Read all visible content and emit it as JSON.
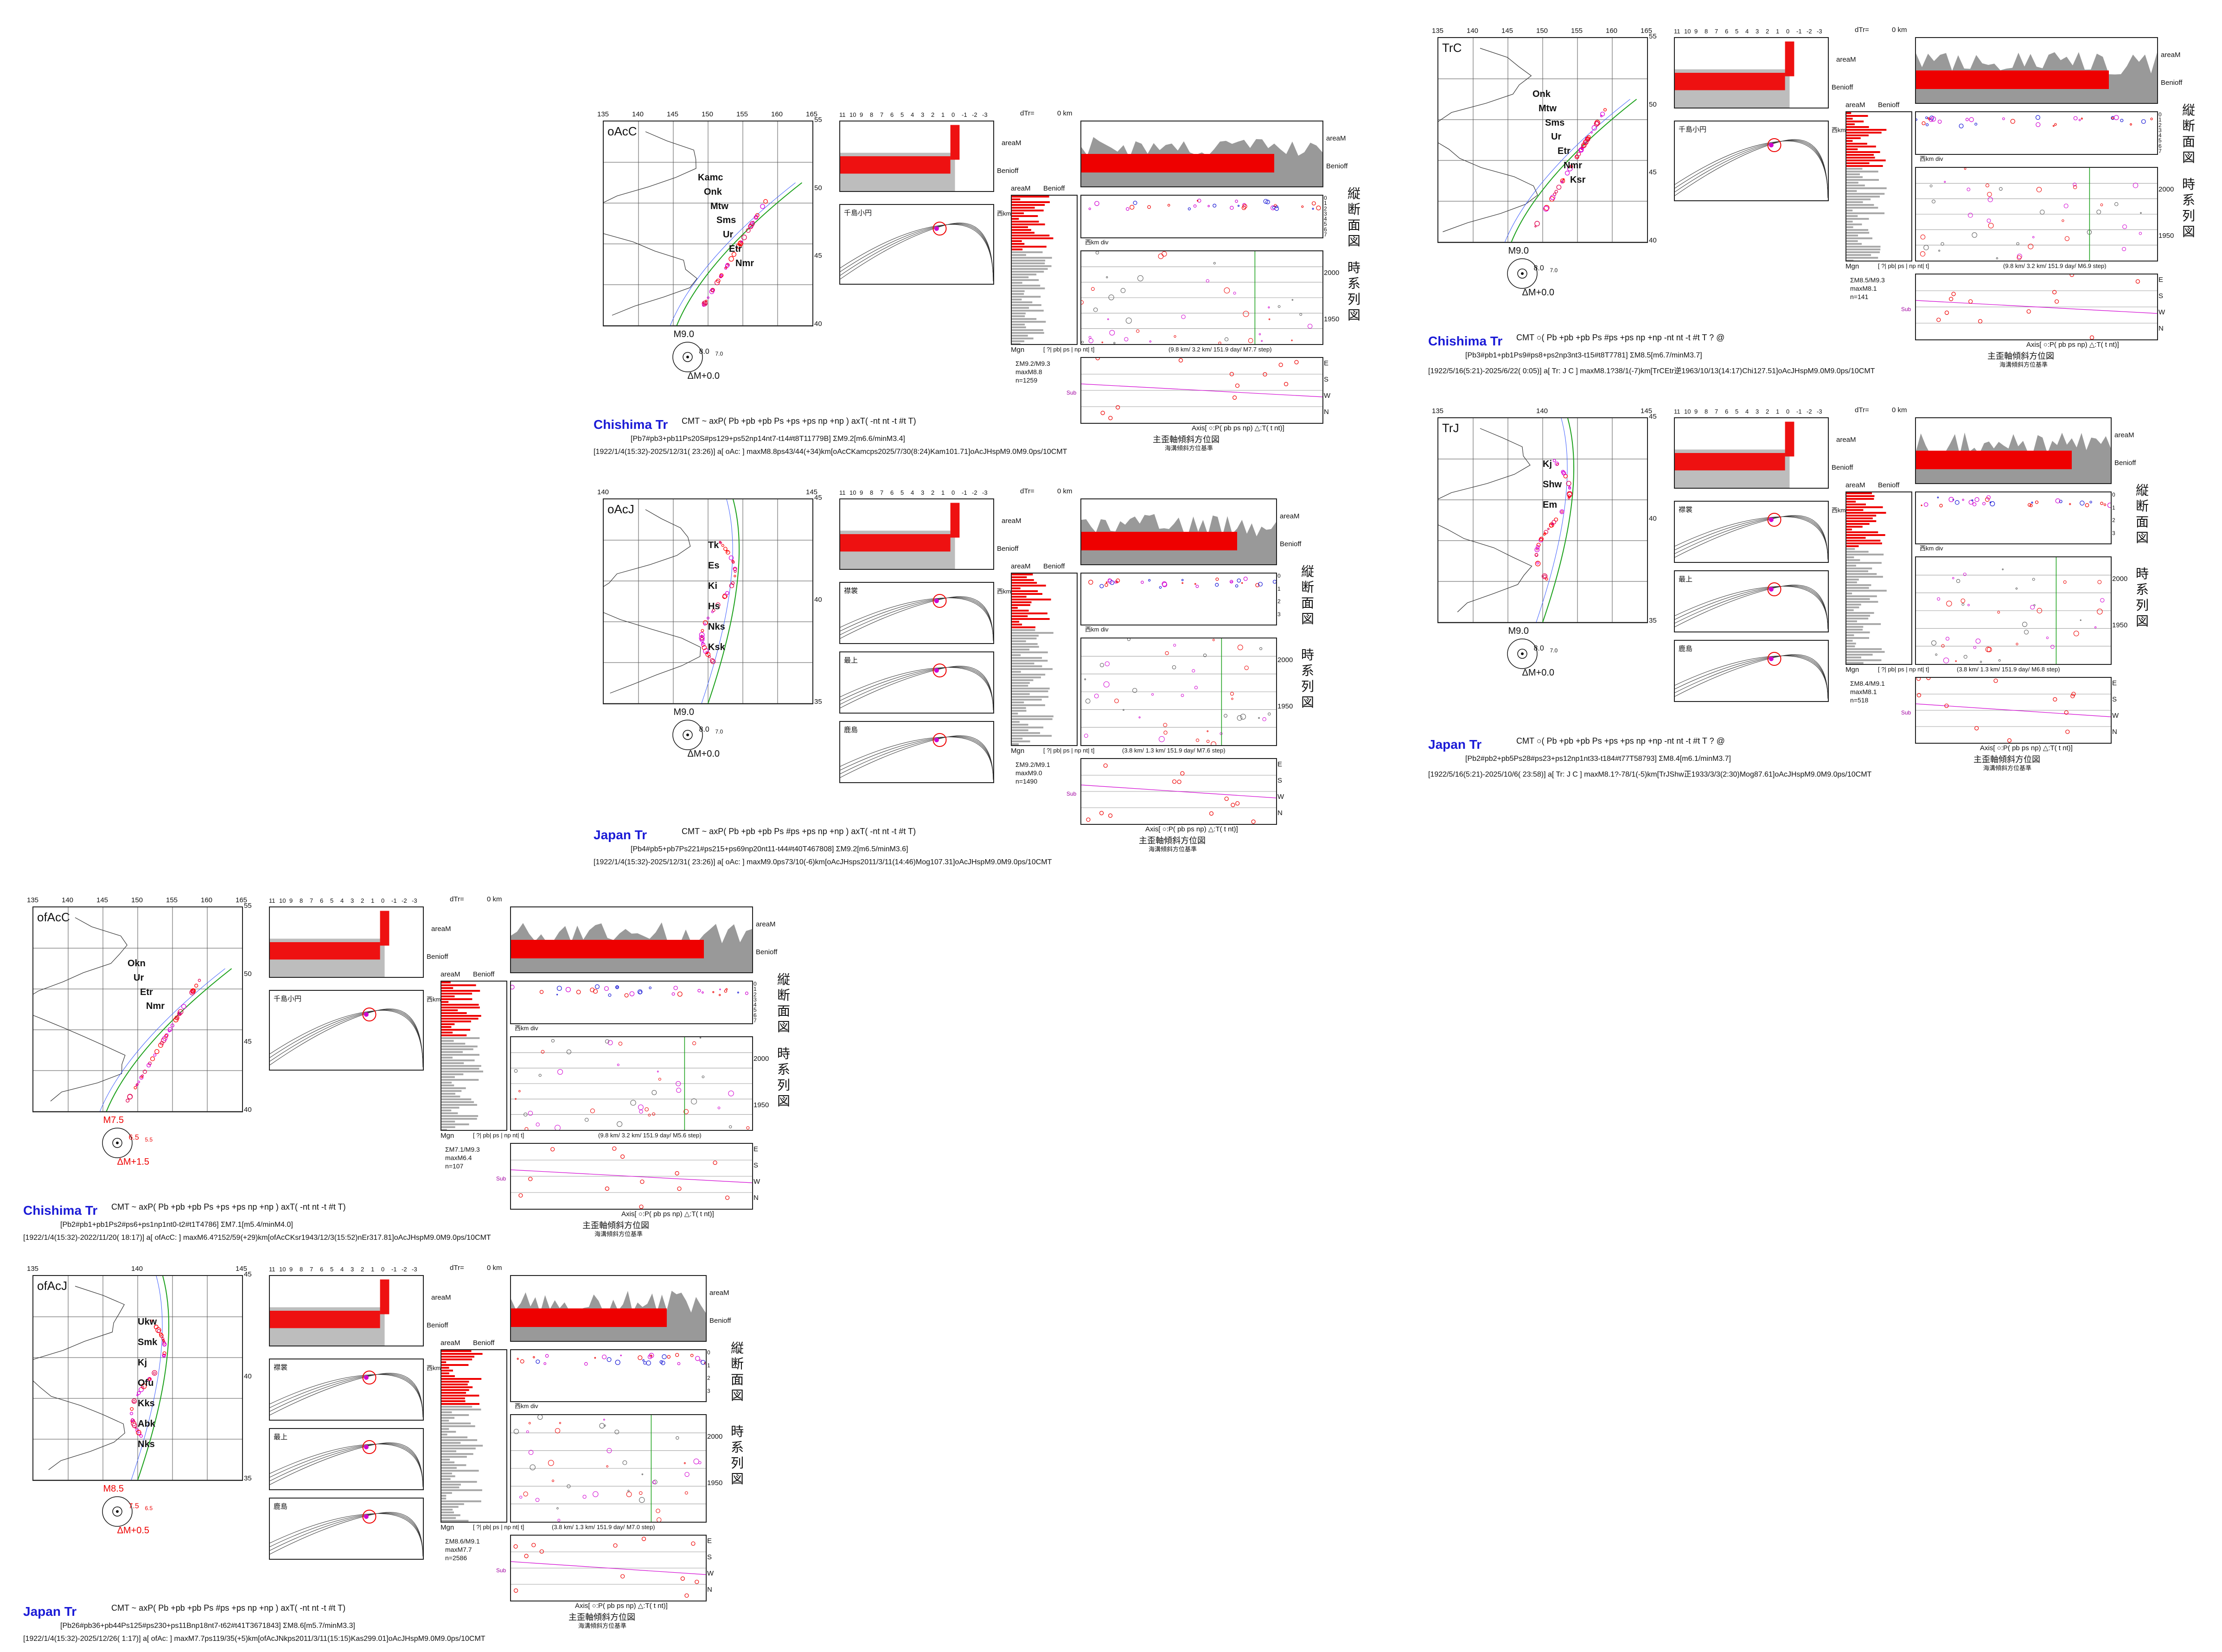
{
  "panels": [
    {
      "id": "oAcC",
      "map_label": "oAcC",
      "lon_ticks": [
        "135",
        "140",
        "145",
        "150",
        "155",
        "160",
        "165"
      ],
      "lat_ticks": [
        "55",
        "50",
        "45",
        "40"
      ],
      "places": [
        "Kamc",
        "Onk",
        "Mtw",
        "Sms",
        "Ur",
        "Etr",
        "Nmr"
      ],
      "region_title": "Chishima Tr",
      "legend": "CMT ~ axP(  Pb  +pb  +pb  Ps  +ps  +ps  np  +np  ) axT(  -nt  nt  -t  #t  T)",
      "line1": "[Pb7#pb3+pb11Ps20S#ps129+ps52np14nt7-t14#t8T11779B] ΣM9.2[m6.6/minM3.4]",
      "line2": "[1922/1/4(15:32)-2025/12/31( 23:26)] a[ oAc: ] maxM8.8ps43/44(+34)km[oAcCKamcps2025/7/30(8:24)Kam101.71]oAcJHspM9.0M9.0ps/10CMT",
      "mag_big": "M9.0",
      "mag_small": "8.0",
      "mag_smaller": "7.0",
      "dm": "ΔM+0.0",
      "stats": [
        "ΣM9.2/M9.3",
        "maxM8.8",
        "n=1259"
      ],
      "step": "(9.8 km/ 3.2 km/ 151.9 day/ M7.7 step)"
    },
    {
      "id": "oAcJ",
      "map_label": "oAcJ",
      "lon_ticks": [
        "140",
        "145"
      ],
      "lat_ticks": [
        "45",
        "40",
        "35"
      ],
      "places": [
        "Tk",
        "Es",
        "Ki",
        "Hs",
        "Nks",
        "Ksk"
      ],
      "region_title": "Japan Tr",
      "legend": "CMT ~ axP(  Pb  +pb  +pb  Ps  #ps  +ps  np  +np  ) axT(  -nt  nt  -t  #t  T)",
      "line1": "[Pb4#pb5+pb7Ps221#ps215+ps69np20nt11-t44#t40T467808] ΣM9.2[m6.5/minM3.6]",
      "line2": "[1922/1/4(15:32)-2025/12/31( 23:26)] a[ oAc: ] maxM9.0ps73/10(-6)km[oAcJHsps2011/3/11(14:46)Mog107.31]oAcJHspM9.0M9.0ps/10CMT",
      "mag_big": "M9.0",
      "mag_small": "8.0",
      "mag_smaller": "7.0",
      "dm": "ΔM+0.0",
      "stats": [
        "ΣM9.2/M9.1",
        "maxM9.0",
        "n=1490"
      ],
      "step": "(3.8 km/ 1.3 km/ 151.9 day/ M7.6 step)"
    },
    {
      "id": "TrC",
      "map_label": "TrC",
      "lon_ticks": [
        "135",
        "140",
        "145",
        "150",
        "155",
        "160",
        "165"
      ],
      "lat_ticks": [
        "55",
        "50",
        "45",
        "40"
      ],
      "places": [
        "Onk",
        "Mtw",
        "Sms",
        "Ur",
        "Etr",
        "Nmr",
        "Ksr"
      ],
      "region_title": "Chishima Tr",
      "legend": "CMT ○(   Pb  +pb  +pb  Ps  #ps  +ps  np  +np  -nt  nt  -t  #t  T  ?   @",
      "line1": "[Pb3#pb1+pb1Ps9#ps8+ps2np3nt3-t15#t8T7781] ΣM8.5[m6.7/minM3.7]",
      "line2": "[1922/5/16(5:21)-2025/6/22( 0:05)] a[ Tr: J C ] maxM8.1?38/1(-7)km[TrCEtr逆1963/10/13(14:17)Chi127.51]oAcJHspM9.0M9.0ps/10CMT",
      "mag_big": "M9.0",
      "mag_small": "8.0",
      "mag_smaller": "7.0",
      "dm": "ΔM+0.0",
      "stats": [
        "ΣM8.5/M9.3",
        "maxM8.1",
        "n=141"
      ],
      "step": "(9.8 km/ 3.2 km/ 151.9 day/ M6.9 step)"
    },
    {
      "id": "TrJ",
      "map_label": "TrJ",
      "lon_ticks": [
        "135",
        "140",
        "145"
      ],
      "lat_ticks": [
        "45",
        "40",
        "35"
      ],
      "places": [
        "Kj",
        "Shw",
        "Em"
      ],
      "region_title": "Japan Tr",
      "legend": "CMT ○(   Pb  +pb  +pb  Ps  +ps  +ps  np  +np  -nt  nt  -t  #t  T  ?   @",
      "line1": "[Pb2#pb2+pb5Ps28#ps23+ps12np1nt33-t184#t77T58793] ΣM8.4[m6.1/minM3.7]",
      "line2": "[1922/5/16(5:21)-2025/10/6( 23:58)] a[ Tr: J C ] maxM8.1?-78/1(-5)km[TrJShw正1933/3/3(2:30)Mog87.61]oAcJHspM9.0M9.0ps/10CMT",
      "mag_big": "M9.0",
      "mag_small": "8.0",
      "mag_smaller": "7.0",
      "dm": "ΔM+0.0",
      "stats": [
        "ΣM8.4/M9.1",
        "maxM8.1",
        "n=518"
      ],
      "step": "(3.8 km/ 1.3 km/ 151.9 day/ M6.8 step)"
    },
    {
      "id": "ofAcC",
      "map_label": "ofAcC",
      "lon_ticks": [
        "135",
        "140",
        "145",
        "150",
        "155",
        "160",
        "165"
      ],
      "lat_ticks": [
        "55",
        "50",
        "45",
        "40"
      ],
      "places": [
        "Okn",
        "Ur",
        "Etr",
        "Nmr"
      ],
      "region_title": "Chishima Tr",
      "legend": "CMT ~ axP(  Pb  +pb  +pb  Ps  +ps  +ps  np  +np  ) axT(  -nt  nt  -t  #t  T)",
      "line1": "[Pb2#pb1+pb1Ps2#ps6+ps1np1nt0-t2#t1T4786] ΣM7.1[m5.4/minM4.0]",
      "line2": "[1922/1/4(15:32)-2022/11/20( 18:17)] a[ ofAcC: ] maxM6.4?152/59(+29)km[ofAcCKsr1943/12/3(15:52)nEr317.81]oAcJHspM9.0M9.0ps/10CMT",
      "mag_big": "M7.5",
      "mag_small": "6.5",
      "mag_smaller": "5.5",
      "dm": "ΔM+1.5",
      "stats": [
        "ΣM7.1/M9.3",
        "maxM6.4",
        "n=107"
      ],
      "step": "(9.8 km/ 3.2 km/ 151.9 day/ M5.6 step)"
    },
    {
      "id": "ofAcJ",
      "map_label": "ofAcJ",
      "lon_ticks": [
        "135",
        "140",
        "145"
      ],
      "lat_ticks": [
        "45",
        "40",
        "35"
      ],
      "places": [
        "Ukw",
        "Smk",
        "Kj",
        "Ofu",
        "Kks",
        "Abk",
        "Nks"
      ],
      "region_title": "Japan Tr",
      "legend": "CMT ~ axP(  Pb  +pb  +pb  Ps  #ps  +ps  np  +np  ) axT(  -nt  nt  -t  #t  T)",
      "line1": "[Pb26#pb36+pb44Ps125#ps230+ps11Bnp18nt7-t62#t41T3671843] ΣM8.6[m5.7/minM3.3]",
      "line2": "[1922/1/4(15:32)-2025/12/26( 1:17)] a[ ofAc: ] maxM7.7ps119/35(+5)km[ofAcJNkps2011/3/11(15:15)Kas299.01]oAcJHspM9.0M9.0ps/10CMT",
      "mag_big": "M8.5",
      "mag_small": "7.5",
      "mag_smaller": "6.5",
      "dm": "ΔM+0.5",
      "stats": [
        "ΣM8.6/M9.1",
        "maxM7.7",
        "n=2586"
      ],
      "step": "(3.8 km/ 1.3 km/ 151.9 day/ M7.0 step)"
    }
  ],
  "common": {
    "areaM": "areaM",
    "benioff": "Benioff",
    "dTr": "dTr=",
    "zero_km": "0 km",
    "kmdiv": "西km div",
    "nishi_km": "西km",
    "mgn": "Mgn",
    "axis_text": "Axis[ ○:P( pb ps np) △:T( t nt)]",
    "axis_title": "主歪軸傾斜方位図",
    "axis_sub": "海溝傾斜方位基準",
    "vertical1": [
      "縦",
      "断",
      "面",
      "図"
    ],
    "vertical2": [
      "時",
      "系",
      "列",
      "図"
    ],
    "year_ticks": [
      "2000",
      "1950"
    ],
    "depth_ticks": [
      "0",
      "1",
      "2",
      "3",
      "4",
      "5",
      "6",
      "7"
    ],
    "dir_labels": [
      "E",
      "S",
      "W",
      "N"
    ],
    "sub": "Sub",
    "prof_cb": "千島小円",
    "prof_names_j": [
      "襟裳",
      "最上",
      "鹿島"
    ],
    "time_ticks": [
      "11",
      "10",
      "9",
      "8",
      "7",
      "6",
      "5",
      "4",
      "3",
      "2",
      "1",
      "0",
      "-1",
      "-2",
      "-3"
    ],
    "pb_legend": "[ ?| pb| ps | np nt|  t]"
  },
  "chart_data": [
    {
      "type": "scatter",
      "title": "oAcC Chishima Tr",
      "n": 1259,
      "max_magnitude": 8.8,
      "sum_magnitude": 9.2,
      "year_range": [
        1922,
        2025
      ]
    },
    {
      "type": "scatter",
      "title": "oAcJ Japan Tr",
      "n": 1490,
      "max_magnitude": 9.0,
      "sum_magnitude": 9.2,
      "year_range": [
        1922,
        2025
      ]
    },
    {
      "type": "scatter",
      "title": "TrC Chishima Tr",
      "n": 141,
      "max_magnitude": 8.1,
      "sum_magnitude": 8.5,
      "year_range": [
        1922,
        2025
      ]
    },
    {
      "type": "scatter",
      "title": "TrJ Japan Tr",
      "n": 518,
      "max_magnitude": 8.1,
      "sum_magnitude": 8.4,
      "year_range": [
        1922,
        2025
      ]
    },
    {
      "type": "scatter",
      "title": "ofAcC Chishima Tr",
      "n": 107,
      "max_magnitude": 6.4,
      "sum_magnitude": 7.1,
      "year_range": [
        1922,
        2022
      ]
    },
    {
      "type": "scatter",
      "title": "ofAcJ Japan Tr",
      "n": 2586,
      "max_magnitude": 7.7,
      "sum_magnitude": 8.6,
      "year_range": [
        1922,
        2025
      ]
    }
  ]
}
